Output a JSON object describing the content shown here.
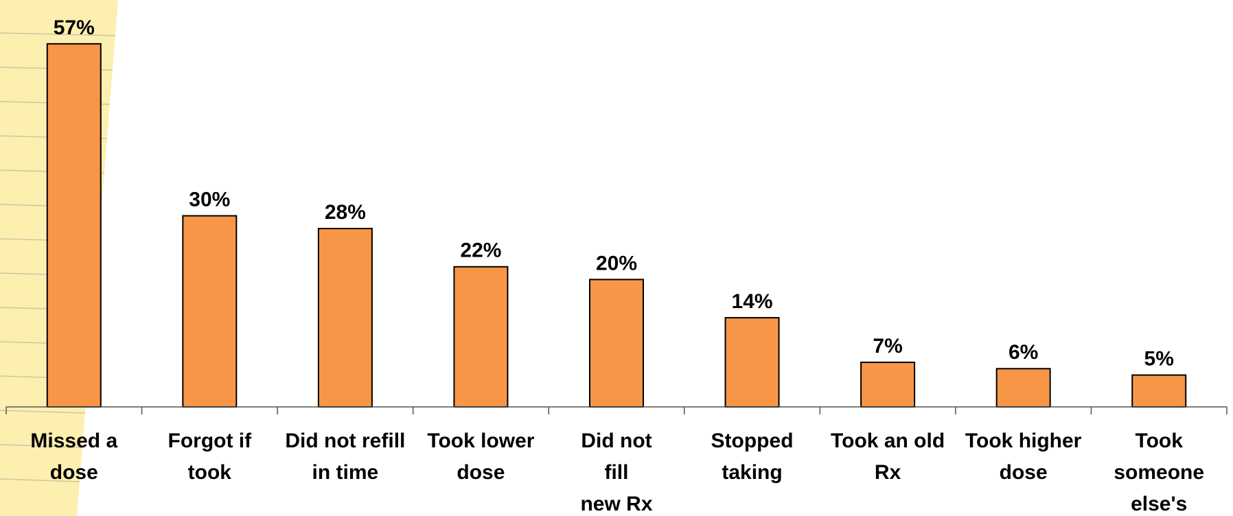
{
  "chart_data": {
    "type": "bar",
    "categories": [
      "Missed a\ndose",
      "Forgot if\ntook",
      "Did not refill\nin time",
      "Took lower\ndose",
      "Did not\nfill\nnew Rx",
      "Stopped\ntaking",
      "Took an old\nRx",
      "Took higher\ndose",
      "Took\nsomeone\nelse's"
    ],
    "values": [
      57,
      30,
      28,
      22,
      20,
      14,
      7,
      6,
      5
    ],
    "value_labels": [
      "57%",
      "30%",
      "28%",
      "22%",
      "20%",
      "14%",
      "7%",
      "6%",
      "5%"
    ],
    "color": "#f79646",
    "ylim": [
      0,
      60
    ]
  }
}
